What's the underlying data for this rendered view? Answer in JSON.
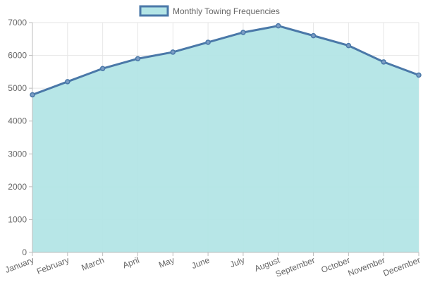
{
  "chart_data": {
    "type": "area",
    "categories": [
      "January",
      "February",
      "March",
      "April",
      "May",
      "June",
      "July",
      "August",
      "September",
      "October",
      "November",
      "December"
    ],
    "series": [
      {
        "name": "Monthly Towing Frequencies",
        "values": [
          4800,
          5200,
          5600,
          5900,
          6100,
          6400,
          6700,
          6900,
          6600,
          6300,
          5800,
          5400
        ],
        "line_color": "#4a78a8",
        "fill_color": "#b3e5e6"
      }
    ],
    "yticks": [
      0,
      1000,
      2000,
      3000,
      4000,
      5000,
      6000,
      7000
    ],
    "ylim": [
      0,
      7000
    ],
    "grid": true,
    "legend_position": "top-center"
  }
}
